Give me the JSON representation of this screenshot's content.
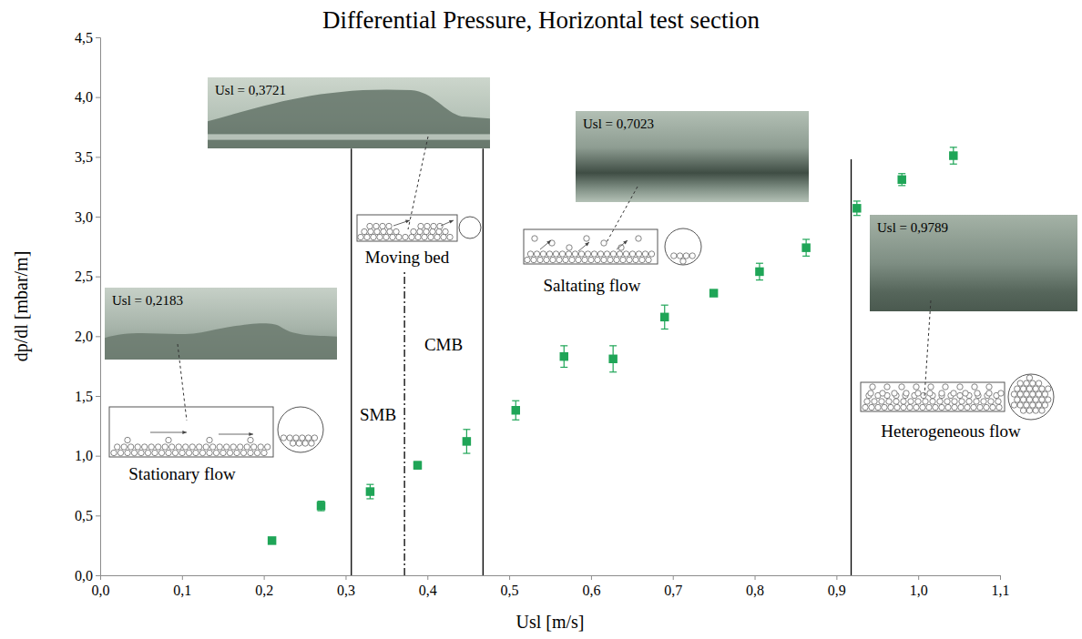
{
  "chart_data": {
    "type": "scatter",
    "title": "Differential Pressure, Horizontal test section",
    "x_label": "Usl [m/s]",
    "y_label": "dp/dl [mbar/m]",
    "xlim": [
      0,
      1.1
    ],
    "ylim": [
      0,
      4.5
    ],
    "xticks": [
      {
        "value": 0,
        "label": "0,0"
      },
      {
        "value": 0.1,
        "label": "0,1"
      },
      {
        "value": 0.2,
        "label": "0,2"
      },
      {
        "value": 0.3,
        "label": "0,3"
      },
      {
        "value": 0.4,
        "label": "0,4"
      },
      {
        "value": 0.5,
        "label": "0,5"
      },
      {
        "value": 0.6,
        "label": "0,6"
      },
      {
        "value": 0.7,
        "label": "0,7"
      },
      {
        "value": 0.8,
        "label": "0,8"
      },
      {
        "value": 0.9,
        "label": "0,9"
      },
      {
        "value": 1.0,
        "label": "1,0"
      },
      {
        "value": 1.1,
        "label": "1,1"
      }
    ],
    "yticks": [
      {
        "value": 0,
        "label": "0,0"
      },
      {
        "value": 0.5,
        "label": "0,5"
      },
      {
        "value": 1.0,
        "label": "1,0"
      },
      {
        "value": 1.5,
        "label": "1,5"
      },
      {
        "value": 2.0,
        "label": "2,0"
      },
      {
        "value": 2.5,
        "label": "2,5"
      },
      {
        "value": 3.0,
        "label": "3,0"
      },
      {
        "value": 3.5,
        "label": "3,5"
      },
      {
        "value": 4.0,
        "label": "4,0"
      },
      {
        "value": 4.5,
        "label": "4,5"
      }
    ],
    "series": [
      {
        "color": "#1fa557",
        "marker": "square",
        "x": [
          0.21,
          0.27,
          0.33,
          0.388,
          0.448,
          0.508,
          0.567,
          0.627,
          0.69,
          0.75,
          0.806,
          0.863,
          0.925,
          0.98,
          1.043
        ],
        "values": [
          0.29,
          0.58,
          0.7,
          0.92,
          1.12,
          1.38,
          1.83,
          1.81,
          2.16,
          2.36,
          2.54,
          2.74,
          3.07,
          3.31,
          3.51
        ],
        "errors": [
          0.02,
          0.04,
          0.06,
          0.03,
          0.1,
          0.08,
          0.09,
          0.11,
          0.1,
          0.02,
          0.07,
          0.07,
          0.06,
          0.05,
          0.07
        ]
      }
    ],
    "boundaries": [
      {
        "x": 0.307,
        "top": 3.57,
        "line_style": "solid"
      },
      {
        "x": 0.372,
        "top": 2.55,
        "line_style": "dashdot"
      },
      {
        "x": 0.468,
        "top": 3.57,
        "line_style": "solid"
      },
      {
        "x": 0.918,
        "top": 3.48,
        "line_style": "solid"
      }
    ],
    "regime_labels": [
      "Stationary flow",
      "SMB",
      "Moving bed",
      "CMB",
      "Saltating flow",
      "Heterogeneous flow"
    ],
    "photo_labels": [
      "Usl = 0,2183",
      "Usl = 0,3721",
      "Usl = 0,7023",
      "Usl = 0,9789"
    ]
  }
}
